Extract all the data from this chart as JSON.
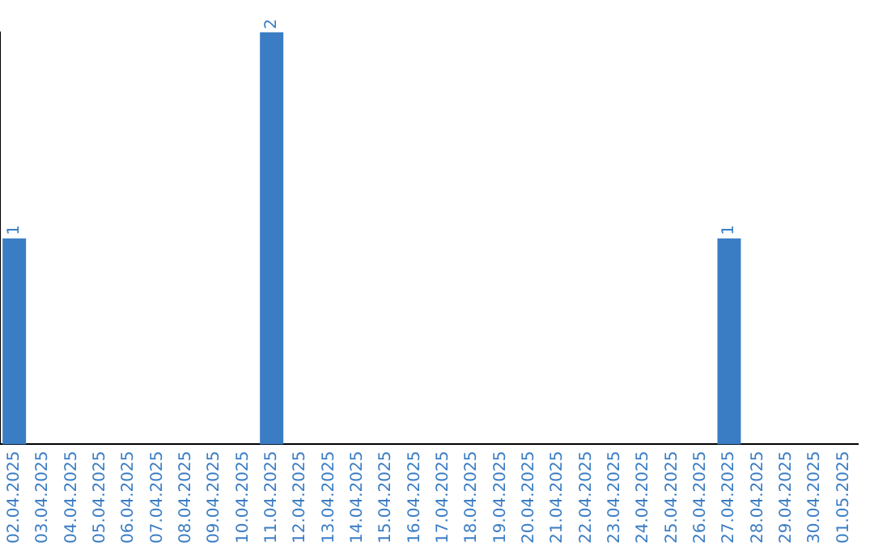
{
  "chart_data": {
    "type": "bar",
    "categories": [
      "02.04.2025",
      "03.04.2025",
      "04.04.2025",
      "05.04.2025",
      "06.04.2025",
      "07.04.2025",
      "08.04.2025",
      "09.04.2025",
      "10.04.2025",
      "11.04.2025",
      "12.04.2025",
      "13.04.2025",
      "14.04.2025",
      "15.04.2025",
      "16.04.2025",
      "17.04.2025",
      "18.04.2025",
      "19.04.2025",
      "20.04.2025",
      "21.04.2025",
      "22.04.2025",
      "23.04.2025",
      "24.04.2025",
      "25.04.2025",
      "26.04.2025",
      "27.04.2025",
      "28.04.2025",
      "29.04.2025",
      "30.04.2025",
      "01.05.2025"
    ],
    "values": [
      1,
      0,
      0,
      0,
      0,
      0,
      0,
      0,
      0,
      2,
      0,
      0,
      0,
      0,
      0,
      0,
      0,
      0,
      0,
      0,
      0,
      0,
      0,
      0,
      0,
      1,
      0,
      0,
      0,
      0
    ],
    "value_labels": [
      "1",
      null,
      null,
      null,
      null,
      null,
      null,
      null,
      null,
      "2",
      null,
      null,
      null,
      null,
      null,
      null,
      null,
      null,
      null,
      null,
      null,
      null,
      null,
      null,
      null,
      "1",
      null,
      null,
      null,
      null
    ],
    "color": "#3b7dc4",
    "tick_labels": "x"
  }
}
